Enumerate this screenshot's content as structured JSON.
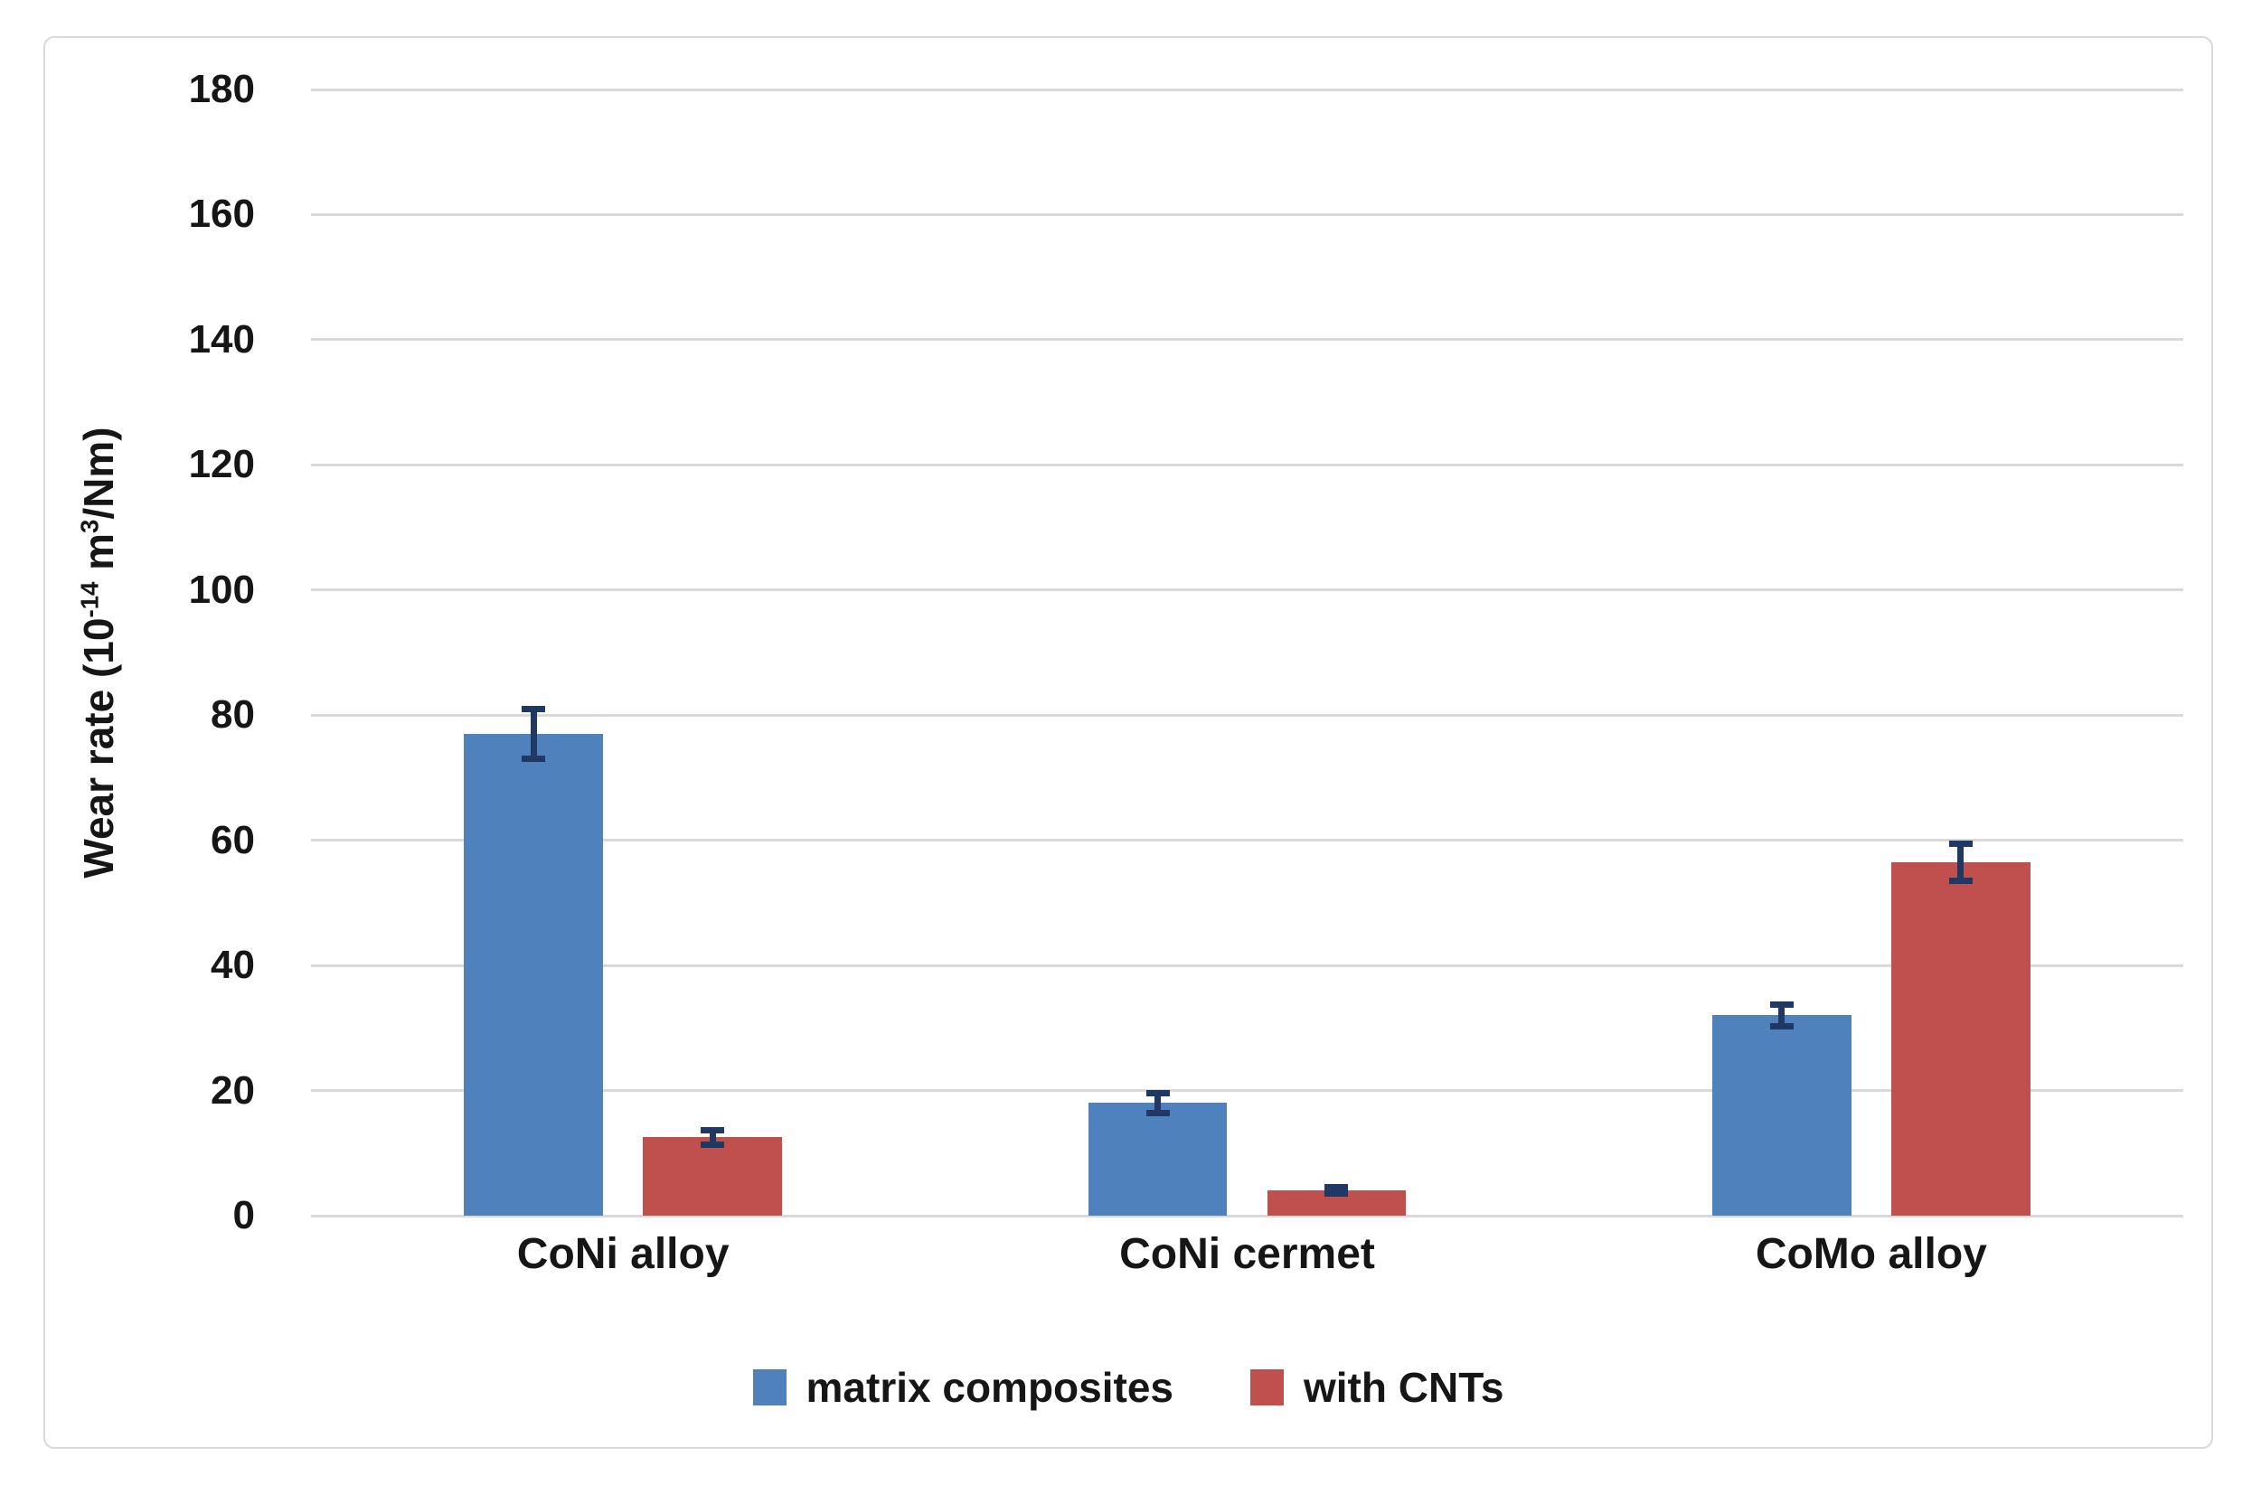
{
  "chart_data": {
    "type": "bar",
    "title": "",
    "categories": [
      "CoNi alloy",
      "CoNi cermet",
      "CoMo alloy"
    ],
    "series": [
      {
        "name": "matrix composites",
        "color": "#4F81BD",
        "values": [
          77,
          18,
          32
        ],
        "errors": [
          4,
          1.6,
          1.8
        ]
      },
      {
        "name": "with CNTs",
        "color": "#C0504D",
        "values": [
          12.5,
          4,
          56.5
        ],
        "errors": [
          1.2,
          0.5,
          3
        ]
      }
    ],
    "xlabel": "",
    "ylabel": "Wear rate (10⁻¹⁴ m³/Nm)",
    "ylabel_parts": {
      "pre": "Wear rate (10",
      "sup1": "-14",
      "mid": " m",
      "sup2": "3",
      "post": "/Nm)"
    },
    "ylim": [
      0,
      180
    ],
    "ytick_step": 20,
    "yticks": [
      0,
      20,
      40,
      60,
      80,
      100,
      120,
      140,
      160,
      180
    ],
    "grid": true,
    "legend_position": "bottom",
    "error_bar_color": "#1F3864",
    "gridline_color": "#D9D9D9",
    "frame_border_color": "#D8D8D8",
    "background_color": "#FFFFFF"
  }
}
